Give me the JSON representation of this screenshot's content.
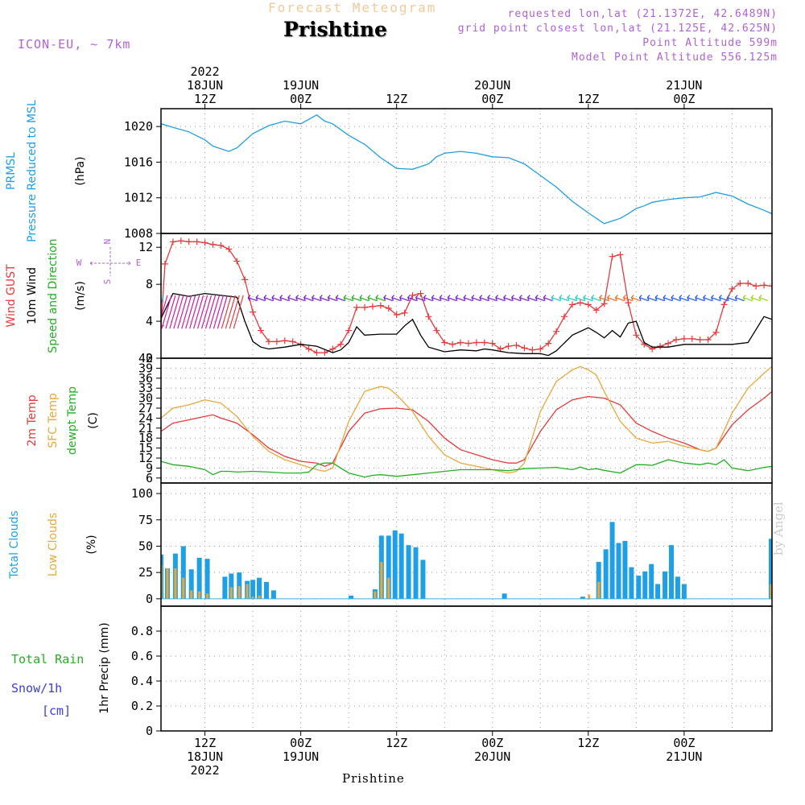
{
  "header": {
    "subtitle": "Forecast Meteogram",
    "title": "Prishtine",
    "model": "ICON-EU, ~ 7km",
    "requested": "requested lon,lat (21.1372E, 42.6489N)",
    "grid_point": "grid point closest lon,lat (21.125E, 42.625N)",
    "point_altitude": "Point Altitude 599m",
    "model_altitude": "Model Point Altitude 556.125m",
    "bottom_name": "Prishtine",
    "watermark": "by Angel"
  },
  "time_axis": {
    "top_labels": [
      {
        "h": 12,
        "lines": [
          "2022",
          "18JUN",
          "12Z"
        ]
      },
      {
        "h": 24,
        "lines": [
          "19JUN",
          "00Z"
        ]
      },
      {
        "h": 36,
        "lines": [
          "12Z"
        ]
      },
      {
        "h": 48,
        "lines": [
          "20JUN",
          "00Z"
        ]
      },
      {
        "h": 60,
        "lines": [
          "12Z"
        ]
      },
      {
        "h": 72,
        "lines": [
          "21JUN",
          "00Z"
        ]
      }
    ],
    "bottom_labels": [
      {
        "h": 12,
        "lines": [
          "12Z",
          "18JUN",
          "2022"
        ]
      },
      {
        "h": 24,
        "lines": [
          "00Z",
          "19JUN"
        ]
      },
      {
        "h": 36,
        "lines": [
          "12Z"
        ]
      },
      {
        "h": 48,
        "lines": [
          "00Z",
          "20JUN"
        ]
      },
      {
        "h": 60,
        "lines": [
          "12Z"
        ]
      },
      {
        "h": 72,
        "lines": [
          "00Z",
          "21JUN"
        ]
      }
    ]
  },
  "chart_data": [
    {
      "type": "line",
      "panel": "pressure",
      "labels": [
        {
          "text": "PRMSL",
          "color": "#1e9fe6"
        },
        {
          "text": "Pressure Reduced to MSL",
          "color": "#1e9fe6"
        },
        {
          "text": "(hPa)",
          "color": "#000000"
        }
      ],
      "ylim": [
        1008,
        1022
      ],
      "yticks": [
        1008,
        1012,
        1016,
        1020
      ],
      "series": [
        {
          "color": "#1e9fe6",
          "x": [
            6.5,
            8,
            10,
            12,
            13,
            15,
            16,
            18,
            20,
            22,
            24,
            26,
            27,
            28,
            30,
            32,
            34,
            36,
            38,
            40,
            41,
            42,
            44,
            46,
            48,
            50,
            52,
            54,
            56,
            58,
            60,
            62,
            64,
            65,
            66,
            67,
            68,
            70,
            72,
            74,
            76,
            78,
            80,
            82,
            83
          ],
          "y": [
            1020.3,
            1019.9,
            1019.4,
            1018.5,
            1017.8,
            1017.2,
            1017.6,
            1019.2,
            1020.1,
            1020.6,
            1020.3,
            1021.3,
            1020.6,
            1020.3,
            1019,
            1018,
            1016.5,
            1015.3,
            1015.2,
            1015.8,
            1016.6,
            1017,
            1017.2,
            1017,
            1016.6,
            1016.5,
            1015.8,
            1014.5,
            1013.2,
            1011.6,
            1010.3,
            1009.1,
            1009.7,
            1010.2,
            1010.8,
            1011.1,
            1011.5,
            1011.8,
            1012,
            1012.1,
            1012.6,
            1012.2,
            1011.3,
            1010.6,
            1010.2
          ]
        }
      ]
    },
    {
      "type": "line",
      "panel": "wind",
      "labels": [
        {
          "text": "Wind GUST",
          "color": "#e8393b"
        },
        {
          "text": "10m Wind",
          "color": "#000000"
        },
        {
          "text": "Speed and Direction",
          "color": "#22b022"
        },
        {
          "text": "(m/s)",
          "color": "#000000"
        }
      ],
      "compass": {
        "n": "N",
        "s": "S",
        "e": "E",
        "w": "W"
      },
      "ylim": [
        0,
        13.5
      ],
      "yticks": [
        0,
        4,
        8,
        12
      ],
      "series": [
        {
          "name": "Wind GUST",
          "color": "#e8393b",
          "x": [
            6.5,
            7,
            8,
            9,
            10,
            11,
            12,
            13,
            14,
            15,
            16,
            17,
            18,
            19,
            20,
            21,
            22,
            23,
            24,
            25,
            26,
            27,
            28,
            29,
            30,
            31,
            32,
            33,
            34,
            35,
            36,
            37,
            38,
            39,
            40,
            41,
            42,
            43,
            44,
            45,
            46,
            47,
            48,
            49,
            50,
            51,
            52,
            53,
            54,
            55,
            56,
            57,
            58,
            59,
            60,
            61,
            62,
            63,
            64,
            65,
            66,
            67,
            68,
            69,
            70,
            71,
            72,
            73,
            74,
            75,
            76,
            77,
            78,
            79,
            80,
            81,
            82,
            83
          ],
          "y": [
            3.5,
            10.2,
            12.6,
            12.7,
            12.6,
            12.6,
            12.5,
            12.3,
            12.2,
            11.8,
            10.5,
            8.5,
            5,
            3,
            1.8,
            1.8,
            1.9,
            1.8,
            1.5,
            1,
            0.6,
            0.6,
            1,
            1.5,
            3,
            5.5,
            5.5,
            5.6,
            5.7,
            5.4,
            4.7,
            4.9,
            6.8,
            7,
            4.5,
            3,
            1.7,
            1.5,
            1.7,
            1.6,
            1.7,
            1.7,
            1.6,
            1,
            1.3,
            1.4,
            1.1,
            0.9,
            1,
            1.6,
            2.9,
            4.5,
            5.8,
            6,
            5.8,
            5.2,
            5.9,
            11,
            11.2,
            6,
            2.5,
            1.5,
            1,
            1.3,
            1.6,
            2,
            2.1,
            2.1,
            2,
            2,
            2.8,
            5.8,
            7.5,
            8.1,
            8.1,
            7.8,
            7.9,
            7.8
          ]
        },
        {
          "name": "10m Wind",
          "color": "#000000",
          "x": [
            6.5,
            8,
            10,
            12,
            14,
            16,
            17,
            18,
            19,
            20,
            22,
            24,
            26,
            28,
            29,
            30,
            31,
            32,
            34,
            36,
            37,
            38,
            39,
            40,
            42,
            44,
            46,
            47,
            48,
            50,
            52,
            54,
            55,
            56,
            58,
            60,
            61,
            62,
            63,
            64,
            65,
            66,
            67,
            68,
            70,
            72,
            74,
            76,
            78,
            80,
            82,
            83
          ],
          "y": [
            4.3,
            7,
            6.7,
            7,
            6.8,
            6.6,
            4,
            1.8,
            1.2,
            1,
            1.2,
            1.5,
            1.3,
            0.6,
            0.9,
            1.7,
            3.4,
            2.5,
            2.6,
            2.6,
            3.5,
            4.2,
            2.5,
            1.2,
            0.7,
            0.9,
            0.8,
            1,
            0.9,
            0.6,
            0.5,
            0.5,
            0.3,
            0.8,
            2.5,
            3.3,
            2.8,
            2.2,
            3,
            2.3,
            3.8,
            4,
            1.7,
            1.2,
            1.2,
            1.5,
            1.5,
            1.5,
            1.5,
            1.7,
            4.5,
            4.2
          ]
        }
      ],
      "direction_markers": [
        {
          "color": "#d11a9e",
          "x0": 7,
          "x1": 15,
          "kind": "hatch"
        },
        {
          "color": "#e8393b",
          "x0": 15,
          "x1": 17,
          "kind": "hatch"
        },
        {
          "color": "#1e9fe6",
          "x0": 6.5,
          "x1": 7,
          "kind": "hatch"
        },
        {
          "color": "#7a1fc8",
          "x0": 18,
          "x1": 30,
          "kind": "arrows"
        },
        {
          "color": "#22b022",
          "x0": 30,
          "x1": 35,
          "kind": "arrows"
        },
        {
          "color": "#7a1fc8",
          "x0": 35,
          "x1": 56,
          "kind": "arrows"
        },
        {
          "color": "#1ec8c8",
          "x0": 56,
          "x1": 62,
          "kind": "arrows"
        },
        {
          "color": "#e86a1e",
          "x0": 62,
          "x1": 67,
          "kind": "arrows"
        },
        {
          "color": "#1e5ae6",
          "x0": 67,
          "x1": 80,
          "kind": "arrows"
        },
        {
          "color": "#9ad41e",
          "x0": 80,
          "x1": 83,
          "kind": "arrows"
        }
      ]
    },
    {
      "type": "line",
      "panel": "temperature",
      "labels": [
        {
          "text": "2m Temp",
          "color": "#e8393b"
        },
        {
          "text": "SFC Temp",
          "color": "#e8a83b"
        },
        {
          "text": "dewpt Temp",
          "color": "#22b022"
        },
        {
          "text": "(C)",
          "color": "#000000"
        }
      ],
      "ylim": [
        4.5,
        42
      ],
      "yticks": [
        6,
        9,
        12,
        15,
        18,
        21,
        24,
        27,
        30,
        33,
        36,
        39,
        42
      ],
      "series": [
        {
          "name": "2m Temp",
          "color": "#e8393b",
          "x": [
            6.5,
            8,
            10,
            12,
            13,
            14,
            16,
            18,
            20,
            22,
            24,
            26,
            27,
            28,
            30,
            32,
            34,
            36,
            38,
            40,
            42,
            44,
            46,
            48,
            50,
            51,
            52,
            54,
            56,
            58,
            60,
            62,
            64,
            66,
            68,
            70,
            72,
            74,
            75,
            76,
            78,
            80,
            82,
            83
          ],
          "y": [
            20,
            22.5,
            23.5,
            24.5,
            25,
            24,
            22.5,
            19,
            15,
            12.5,
            11,
            10.5,
            9.5,
            10.5,
            20,
            25.5,
            26.8,
            27,
            26.5,
            23,
            18,
            14.5,
            13,
            11.5,
            10.5,
            10.5,
            11.5,
            20,
            26.5,
            29.5,
            30.5,
            30,
            28,
            22.5,
            20,
            18,
            16.5,
            14.5,
            14,
            15,
            22,
            26.5,
            30,
            32
          ]
        },
        {
          "name": "SFC Temp",
          "color": "#e8a83b",
          "x": [
            6.5,
            8,
            10,
            12,
            14,
            16,
            18,
            20,
            22,
            24,
            26,
            27,
            28,
            30,
            32,
            34,
            35,
            36,
            38,
            40,
            42,
            44,
            46,
            48,
            50,
            51,
            52,
            54,
            56,
            58,
            59,
            60,
            61,
            62,
            64,
            66,
            68,
            70,
            72,
            74,
            75,
            76,
            78,
            80,
            82,
            83
          ],
          "y": [
            24,
            27,
            28,
            29.5,
            28.5,
            24.5,
            18.5,
            14,
            11.5,
            10,
            8.5,
            8,
            9,
            23,
            32,
            33.5,
            33,
            31,
            26,
            18.5,
            13,
            10.5,
            9.5,
            8.5,
            7.5,
            8,
            10.5,
            26,
            35,
            38.5,
            39.5,
            38.5,
            37,
            32,
            23,
            18,
            16.5,
            17,
            15.5,
            14.5,
            14,
            15,
            25.5,
            33,
            37.5,
            39.5
          ]
        },
        {
          "name": "dewpt Temp",
          "color": "#22b022",
          "x": [
            6.5,
            8,
            10,
            12,
            13,
            14,
            15,
            16,
            18,
            20,
            22,
            24,
            25,
            26,
            27,
            28,
            30,
            32,
            33,
            34,
            36,
            38,
            40,
            42,
            44,
            46,
            48,
            50,
            52,
            54,
            56,
            58,
            59,
            60,
            61,
            62,
            64,
            66,
            67,
            68,
            70,
            72,
            74,
            75,
            76,
            77,
            78,
            80,
            82,
            83
          ],
          "y": [
            11,
            10,
            9.5,
            8.5,
            7,
            8,
            8,
            7.8,
            8,
            7.8,
            7.5,
            7.5,
            7.8,
            10,
            10.5,
            10.5,
            7.5,
            6.3,
            6.8,
            7,
            6.5,
            7,
            7.5,
            8,
            8.5,
            8.5,
            8.5,
            8.2,
            8.8,
            9,
            9.2,
            8.5,
            9.3,
            8.5,
            8.8,
            8.3,
            7.5,
            10,
            10,
            9.8,
            11.5,
            10.5,
            10,
            10.5,
            10,
            11.5,
            9,
            8.2,
            9.2,
            9.5
          ]
        }
      ]
    },
    {
      "type": "bar",
      "panel": "clouds",
      "labels": [
        {
          "text": "Total Clouds",
          "color": "#1e9fe6"
        },
        {
          "text": "Low Clouds",
          "color": "#e8a83b"
        },
        {
          "text": "(%)",
          "color": "#000000"
        }
      ],
      "ylim": [
        -7,
        110
      ],
      "yticks": [
        0,
        25,
        50,
        75,
        100
      ],
      "series": [
        {
          "name": "Total Clouds",
          "color": "#1e9fe6",
          "x": [
            6.5,
            7.3,
            8.3,
            9.3,
            10.3,
            11.3,
            12.3,
            14.5,
            15.3,
            16.3,
            17.3,
            18,
            18.8,
            19.7,
            20.6,
            30.3,
            33.3,
            34.1,
            35,
            35.8,
            36.6,
            37.5,
            38.4,
            39.3,
            49.5,
            59.3,
            61.3,
            62.2,
            63,
            63.8,
            64.6,
            65.4,
            66.3,
            67.1,
            67.9,
            68.7,
            69.6,
            70.4,
            71.2,
            72,
            82.9
          ],
          "values": [
            42,
            29,
            43,
            50,
            28,
            39,
            38,
            21,
            24,
            25,
            17,
            18,
            20,
            16,
            8,
            3,
            9,
            60,
            60,
            65,
            62,
            51,
            49,
            37,
            5,
            2,
            35,
            47,
            73,
            53,
            55,
            30,
            22,
            26,
            33,
            14,
            26,
            51,
            21,
            14,
            57
          ]
        },
        {
          "name": "Low Clouds",
          "color": "#e8a83b",
          "x": [
            6.5,
            7.3,
            8.3,
            9.3,
            10.3,
            11.3,
            12.3,
            15.3,
            16.3,
            17.3,
            18,
            18.8,
            33.3,
            34.1,
            35,
            60.1,
            61.3,
            82.9
          ],
          "values": [
            32,
            29,
            29,
            20,
            8,
            7,
            5,
            11,
            12,
            14,
            2,
            3,
            7,
            35,
            20,
            4,
            16,
            14
          ]
        }
      ]
    },
    {
      "type": "bar",
      "panel": "precip",
      "labels": [
        {
          "text": "Total  Rain",
          "color": "#22b022"
        },
        {
          "text": "Snow/1h",
          "color": "#3b3be8"
        },
        {
          "text": "[cm]",
          "color": "#3b3be8"
        },
        {
          "text": "1hr Precip (mm)",
          "color": "#000000"
        }
      ],
      "ylim": [
        0,
        1
      ],
      "yticks": [
        0,
        0.2,
        0.4,
        0.6,
        0.8
      ],
      "series": []
    }
  ]
}
